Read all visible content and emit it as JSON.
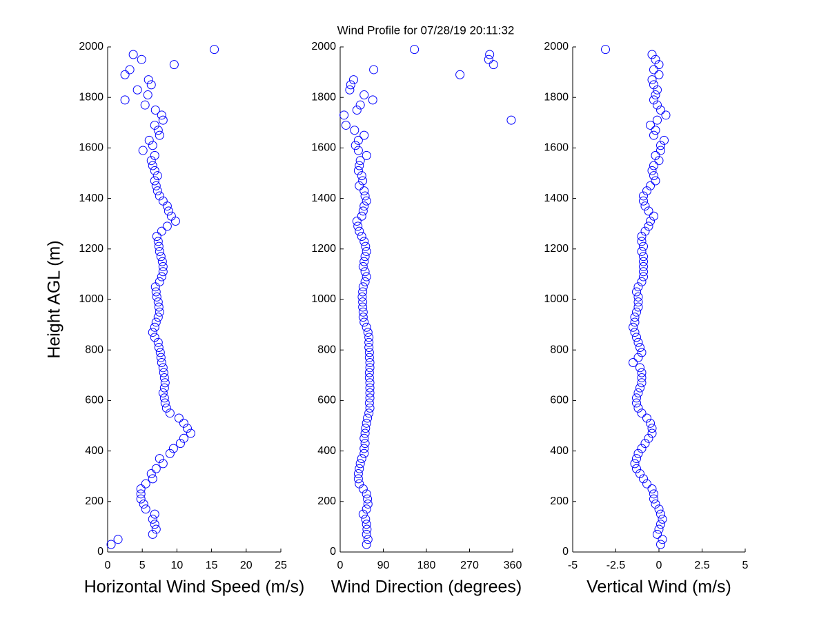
{
  "title": "Wind Profile for  07/28/19 20:11:32",
  "chart_data": [
    {
      "type": "scatter",
      "xlabel": "Horizontal Wind Speed (m/s)",
      "ylabel": "Height AGL (m)",
      "color": "#0000ff",
      "xlim": [
        0,
        25
      ],
      "xticks": [
        0,
        5,
        10,
        15,
        20,
        25
      ],
      "ylim": [
        0,
        2000
      ],
      "yticks": [
        0,
        200,
        400,
        600,
        800,
        1000,
        1200,
        1400,
        1600,
        1800,
        2000
      ],
      "x": [
        0.5,
        1.5,
        6.5,
        7,
        6.8,
        6.5,
        6.8,
        5.5,
        5.2,
        4.8,
        4.8,
        4.8,
        5.5,
        6.5,
        6.3,
        7,
        8,
        7.5,
        9,
        9.5,
        10.5,
        11,
        12,
        11.5,
        11,
        10.3,
        9,
        8.5,
        8.3,
        8.2,
        8,
        8.2,
        8.3,
        8.2,
        8.1,
        8,
        7.8,
        7.7,
        7.6,
        7.4,
        7.3,
        6.8,
        6.5,
        6.8,
        7,
        7.3,
        7.5,
        7.4,
        7.3,
        7.1,
        7,
        6.9,
        7.5,
        7.8,
        8,
        8,
        7.9,
        7.7,
        7.5,
        7.4,
        7.3,
        7.1,
        7.8,
        8.6,
        9.8,
        9.2,
        8.8,
        8.6,
        8,
        7.5,
        7.2,
        7,
        6.8,
        7.2,
        6.8,
        6.5,
        6.3,
        6.8,
        5.1,
        6.5,
        6,
        7.5,
        7.3,
        6.8,
        8,
        7.8,
        6.9,
        5.4,
        2.5,
        5.8,
        4.3,
        6.3,
        5.9,
        2.5,
        3.2,
        9.6,
        4.9,
        3.7,
        15.4
      ],
      "values": [
        30,
        50,
        70,
        90,
        110,
        130,
        150,
        170,
        190,
        210,
        230,
        250,
        270,
        290,
        310,
        330,
        350,
        370,
        390,
        410,
        430,
        450,
        470,
        490,
        510,
        530,
        550,
        570,
        590,
        610,
        630,
        650,
        670,
        690,
        710,
        730,
        750,
        770,
        790,
        810,
        830,
        850,
        870,
        890,
        910,
        930,
        950,
        970,
        990,
        1010,
        1030,
        1050,
        1070,
        1090,
        1110,
        1130,
        1150,
        1170,
        1190,
        1210,
        1230,
        1250,
        1270,
        1290,
        1310,
        1330,
        1350,
        1370,
        1390,
        1410,
        1430,
        1450,
        1470,
        1490,
        1510,
        1530,
        1550,
        1570,
        1590,
        1610,
        1630,
        1650,
        1670,
        1690,
        1710,
        1730,
        1750,
        1770,
        1790,
        1810,
        1830,
        1850,
        1870,
        1890,
        1910,
        1930,
        1950,
        1970,
        1990
      ]
    },
    {
      "type": "scatter",
      "xlabel": "Wind Direction (degrees)",
      "color": "#0000ff",
      "xlim": [
        0,
        360
      ],
      "xticks": [
        0,
        90,
        180,
        270,
        360
      ],
      "ylim": [
        0,
        2000
      ],
      "yticks": [
        0,
        200,
        400,
        600,
        800,
        1000,
        1200,
        1400,
        1600,
        1800,
        2000
      ],
      "x": [
        55,
        58,
        55,
        56,
        55,
        53,
        48,
        55,
        58,
        57,
        55,
        48,
        40,
        38,
        38,
        40,
        42,
        45,
        50,
        50,
        52,
        50,
        52,
        53,
        55,
        57,
        60,
        62,
        61,
        62,
        62,
        62,
        62,
        61,
        61,
        62,
        62,
        61,
        61,
        60,
        60,
        60,
        58,
        55,
        50,
        48,
        48,
        47,
        47,
        46,
        47,
        48,
        52,
        55,
        52,
        48,
        50,
        52,
        55,
        53,
        50,
        45,
        40,
        37,
        35,
        45,
        48,
        50,
        55,
        52,
        50,
        40,
        47,
        45,
        38,
        40,
        42,
        55,
        38,
        32,
        38,
        50,
        30,
        12,
        357,
        8,
        35,
        42,
        68,
        50,
        20,
        22,
        28,
        250,
        70,
        320,
        310,
        312,
        155
      ],
      "values": [
        30,
        50,
        70,
        90,
        110,
        130,
        150,
        170,
        190,
        210,
        230,
        250,
        270,
        290,
        310,
        330,
        350,
        370,
        390,
        410,
        430,
        450,
        470,
        490,
        510,
        530,
        550,
        570,
        590,
        610,
        630,
        650,
        670,
        690,
        710,
        730,
        750,
        770,
        790,
        810,
        830,
        850,
        870,
        890,
        910,
        930,
        950,
        970,
        990,
        1010,
        1030,
        1050,
        1070,
        1090,
        1110,
        1130,
        1150,
        1170,
        1190,
        1210,
        1230,
        1250,
        1270,
        1290,
        1310,
        1330,
        1350,
        1370,
        1390,
        1410,
        1430,
        1450,
        1470,
        1490,
        1510,
        1530,
        1550,
        1570,
        1590,
        1610,
        1630,
        1650,
        1670,
        1690,
        1710,
        1730,
        1750,
        1770,
        1790,
        1810,
        1830,
        1850,
        1870,
        1890,
        1910,
        1930,
        1950,
        1970,
        1990
      ]
    },
    {
      "type": "scatter",
      "xlabel": "Vertical Wind (m/s)",
      "color": "#0000ff",
      "xlim": [
        -5,
        5
      ],
      "xticks": [
        -5,
        -2.5,
        0,
        2.5,
        5
      ],
      "ylim": [
        0,
        2000
      ],
      "yticks": [
        0,
        200,
        400,
        600,
        800,
        1000,
        1200,
        1400,
        1600,
        1800,
        2000
      ],
      "x": [
        0.1,
        0.2,
        -0.1,
        0,
        0.1,
        0.2,
        0.1,
        0,
        -0.2,
        -0.3,
        -0.3,
        -0.4,
        -0.7,
        -0.9,
        -1.1,
        -1.3,
        -1.4,
        -1.3,
        -1.2,
        -1,
        -0.8,
        -0.6,
        -0.4,
        -0.4,
        -0.5,
        -0.7,
        -1,
        -1.2,
        -1.3,
        -1.3,
        -1.2,
        -1.1,
        -1,
        -1,
        -1,
        -1.1,
        -1.5,
        -1.2,
        -1,
        -1.1,
        -1.2,
        -1.3,
        -1.4,
        -1.5,
        -1.4,
        -1.4,
        -1.3,
        -1.2,
        -1.2,
        -1.2,
        -1.3,
        -1.2,
        -1,
        -0.9,
        -0.9,
        -0.9,
        -0.9,
        -0.9,
        -1,
        -0.9,
        -1,
        -1,
        -0.8,
        -0.6,
        -0.5,
        -0.3,
        -0.6,
        -0.8,
        -0.9,
        -0.9,
        -0.7,
        -0.5,
        -0.2,
        -0.3,
        -0.4,
        -0.3,
        0,
        -0.2,
        0.1,
        0.1,
        0.3,
        -0.3,
        -0.2,
        -0.5,
        -0.1,
        0.4,
        0.1,
        -0.1,
        -0.3,
        -0.2,
        -0.1,
        -0.3,
        -0.4,
        0,
        -0.3,
        0,
        -0.2,
        -0.4,
        -3.1
      ],
      "values": [
        30,
        50,
        70,
        90,
        110,
        130,
        150,
        170,
        190,
        210,
        230,
        250,
        270,
        290,
        310,
        330,
        350,
        370,
        390,
        410,
        430,
        450,
        470,
        490,
        510,
        530,
        550,
        570,
        590,
        610,
        630,
        650,
        670,
        690,
        710,
        730,
        750,
        770,
        790,
        810,
        830,
        850,
        870,
        890,
        910,
        930,
        950,
        970,
        990,
        1010,
        1030,
        1050,
        1070,
        1090,
        1110,
        1130,
        1150,
        1170,
        1190,
        1210,
        1230,
        1250,
        1270,
        1290,
        1310,
        1330,
        1350,
        1370,
        1390,
        1410,
        1430,
        1450,
        1470,
        1490,
        1510,
        1530,
        1550,
        1570,
        1590,
        1610,
        1630,
        1650,
        1670,
        1690,
        1710,
        1730,
        1750,
        1770,
        1790,
        1810,
        1830,
        1850,
        1870,
        1890,
        1910,
        1930,
        1950,
        1970,
        1990
      ]
    }
  ]
}
